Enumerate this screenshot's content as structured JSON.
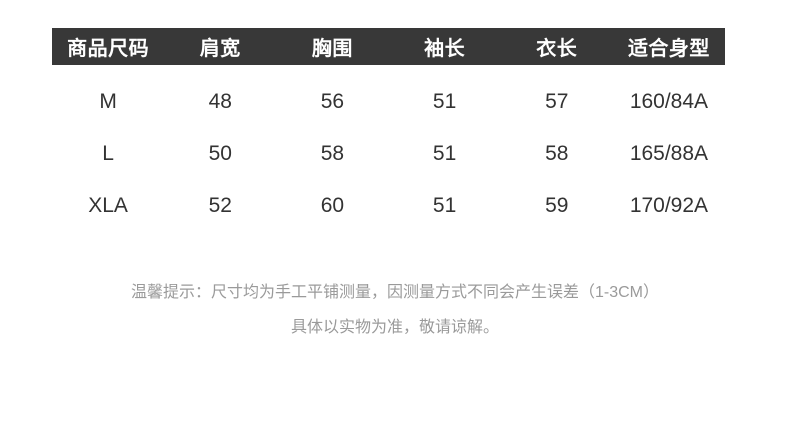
{
  "chart_data": {
    "type": "table",
    "columns": [
      "商品尺码",
      "肩宽",
      "胸围",
      "袖长",
      "衣长",
      "适合身型"
    ],
    "rows": [
      [
        "M",
        "48",
        "56",
        "51",
        "57",
        "160/84A"
      ],
      [
        "L",
        "50",
        "58",
        "51",
        "58",
        "165/88A"
      ],
      [
        "XLA",
        "52",
        "60",
        "51",
        "59",
        "170/92A"
      ]
    ]
  },
  "notice": {
    "line1": "温馨提示：尺寸均为手工平铺测量，因测量方式不同会产生误差（1-3CM）",
    "line2": "具体以实物为准，敬请谅解。"
  },
  "colors": {
    "page_bg": "#ffffff",
    "header_bg": "#383838",
    "header_text": "#ffffff",
    "cell_text": "#333333",
    "notice_text": "#9a9a9a"
  }
}
